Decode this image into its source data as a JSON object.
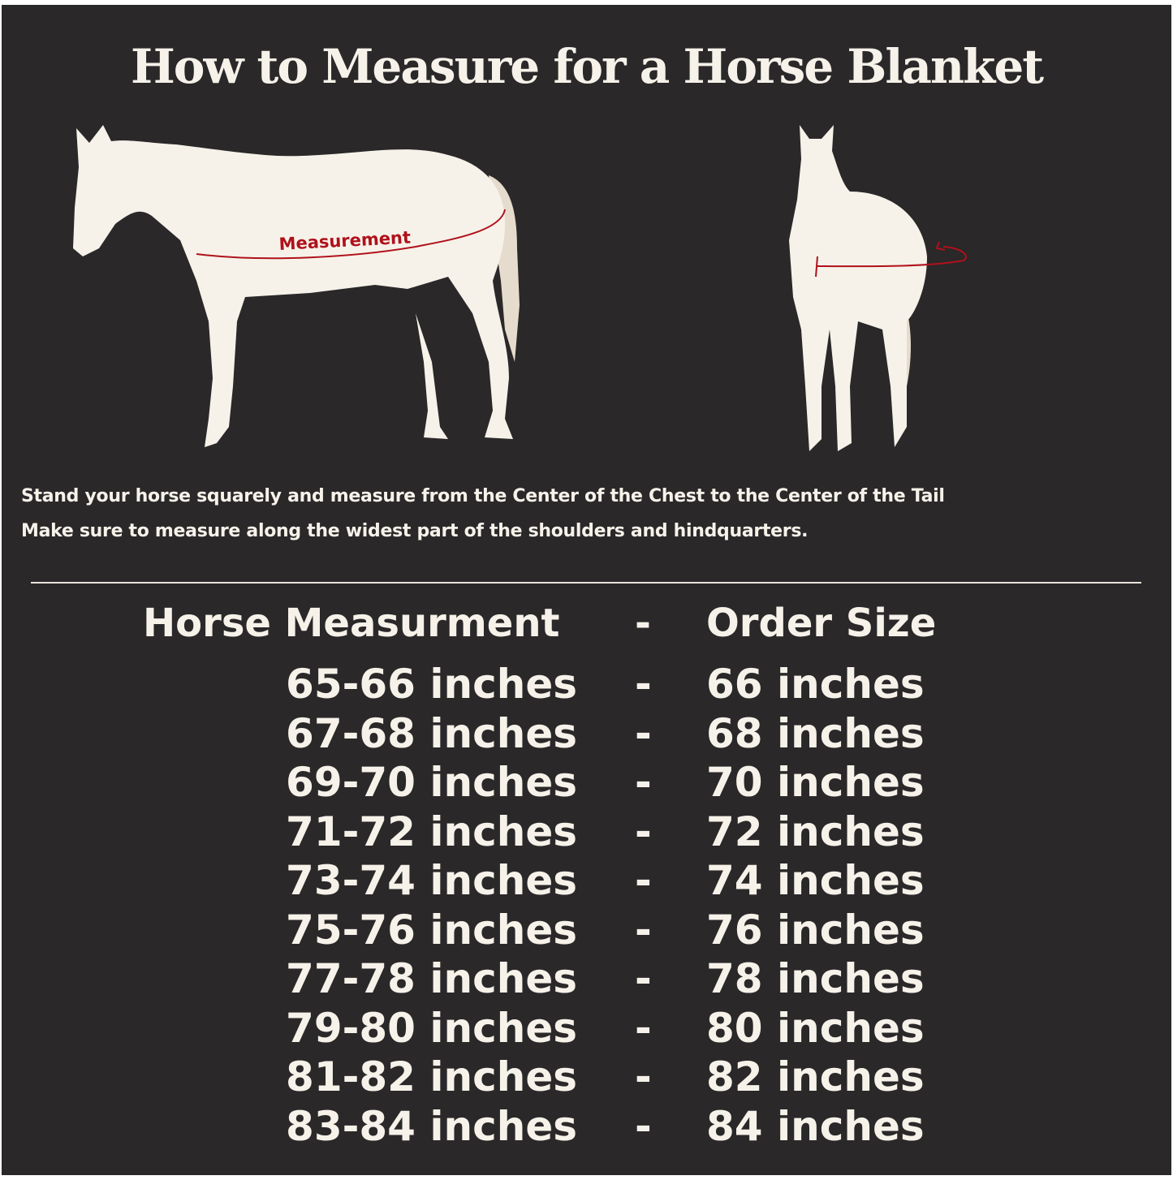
{
  "title": "How to Measure for a Horse Blanket",
  "illustration": {
    "label": "Measurement",
    "line_color": "#b0111b",
    "horse_color": "#f6f2ea"
  },
  "instructions": [
    "Stand your horse squarely and measure from the Center of the Chest to the Center of the Tail",
    "Make sure to measure along the widest part of the shoulders and hindquarters."
  ],
  "table": {
    "headers": [
      "Horse Measurment",
      "-",
      "Order Size"
    ],
    "rows": [
      [
        "65-66 inches",
        "-",
        "66 inches"
      ],
      [
        "67-68 inches",
        "-",
        "68 inches"
      ],
      [
        "69-70 inches",
        "-",
        "70 inches"
      ],
      [
        "71-72 inches",
        "-",
        "72 inches"
      ],
      [
        "73-74 inches",
        "-",
        "74 inches"
      ],
      [
        "75-76 inches",
        "-",
        "76 inches"
      ],
      [
        "77-78 inches",
        "-",
        "78 inches"
      ],
      [
        "79-80 inches",
        "-",
        "80 inches"
      ],
      [
        "81-82 inches",
        "-",
        "82 inches"
      ],
      [
        "83-84 inches",
        "-",
        "84 inches"
      ]
    ]
  }
}
